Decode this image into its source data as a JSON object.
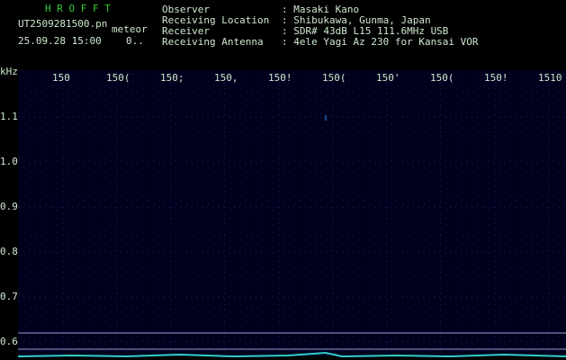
{
  "header": {
    "title": "H R O F F T",
    "file": "UT2509281500.pn",
    "tag": "meteor",
    "datetime": "25.09.28 15:00",
    "counter": "0.."
  },
  "info": [
    {
      "label": "Observer",
      "value": ": Masaki Kano"
    },
    {
      "label": "Receiving Location",
      "value": ": Shibukawa, Gunma, Japan"
    },
    {
      "label": "Receiver",
      "value": ": SDR# 43dB L15 111.6MHz USB"
    },
    {
      "label": "Receiving Antenna",
      "value": ": 4ele Yagi Az 230 for Kansai VOR"
    }
  ],
  "axis": {
    "unit": "kHz",
    "x_labels": [
      "150",
      "150(",
      "150;",
      "150,",
      "150!",
      "150(",
      "150'",
      "150(",
      "150!",
      "1510"
    ],
    "y_labels": [
      "1.1",
      "1.0",
      "0.9",
      "0.8",
      "0.7",
      "0.6"
    ]
  }
}
